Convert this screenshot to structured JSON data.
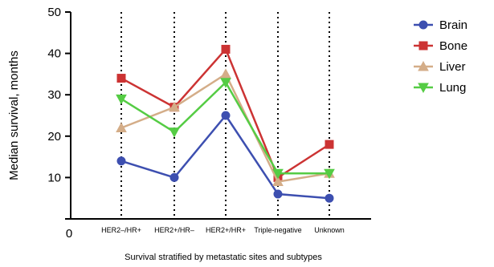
{
  "chart_data": {
    "type": "line",
    "categories": [
      "HER2–/HR+",
      "HER2+/HR–",
      "HER2+/HR+",
      "Triple-negative",
      "Unknown"
    ],
    "xlabel": "Survival stratified by metastatic sites and subtypes",
    "ylabel": "Median survival, months",
    "ylim": [
      0,
      50
    ],
    "yticks": [
      0,
      10,
      20,
      30,
      40,
      50
    ],
    "ytick_labels": [
      "0",
      "10",
      "20",
      "30",
      "40",
      "50"
    ],
    "legend_position": "right",
    "grid": "dotted vertical lines at categories",
    "series": [
      {
        "name": "Brain",
        "color": "#3d4fb0",
        "marker": "circle",
        "values": [
          14,
          10,
          25,
          6,
          5
        ]
      },
      {
        "name": "Bone",
        "color": "#cc3333",
        "marker": "square",
        "values": [
          34,
          27,
          41,
          10,
          18
        ]
      },
      {
        "name": "Liver",
        "color": "#d4ad88",
        "marker": "triangle-up",
        "values": [
          22,
          27,
          35,
          9,
          11
        ]
      },
      {
        "name": "Lung",
        "color": "#55cc44",
        "marker": "triangle-down",
        "values": [
          29,
          21,
          33,
          11,
          11
        ]
      }
    ]
  }
}
